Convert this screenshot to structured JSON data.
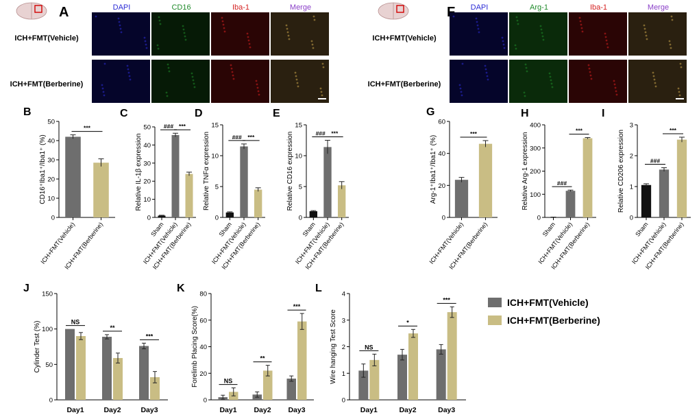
{
  "colors": {
    "vehicle": "#6e6e6e",
    "berberine": "#c9bd84",
    "sham": "#111111",
    "dapi": "#2b2bd6",
    "cd16": "#1f8a2a",
    "iba": "#d41f1f",
    "merge": "#8a3fc8",
    "border": "#888888"
  },
  "micro": [
    {
      "letter": "A",
      "columns": [
        "DAPI",
        "CD16",
        "Iba-1",
        "Merge"
      ],
      "rows": [
        "ICH+FMT(Vehicle)",
        "ICH+FMT(Berberine)"
      ]
    },
    {
      "letter": "F",
      "columns": [
        "DAPI",
        "Arg-1",
        "Iba-1",
        "Merge"
      ],
      "rows": [
        "ICH+FMT(Vehicle)",
        "ICH+FMT(Berberine)"
      ]
    }
  ],
  "legend": [
    "ICH+FMT(Vehicle)",
    "ICH+FMT(Berberine)"
  ],
  "chart_data": [
    {
      "panel": "B",
      "type": "bar",
      "ylabel": "CD16⁺Iba1⁺/Iba1⁺ (%)",
      "ylim": [
        0,
        50
      ],
      "yticks": [
        0,
        10,
        20,
        30,
        40,
        50
      ],
      "categories": [
        "ICH+FMT(Vehicle)",
        "ICH+FMT(Berberine)"
      ],
      "values": [
        42,
        28.5
      ],
      "errors": [
        1,
        2
      ],
      "colors": [
        "vehicle",
        "berberine"
      ],
      "annotations": [
        {
          "text": "***",
          "from": 0,
          "to": 1
        }
      ]
    },
    {
      "panel": "C",
      "type": "bar",
      "ylabel": "Relative IL-1β expression",
      "ylim": [
        0,
        50
      ],
      "yticks": [
        0,
        10,
        20,
        30,
        40,
        50
      ],
      "categories": [
        "Sham",
        "ICH+FMT(Vehicle)",
        "ICH+FMT(Berberine)"
      ],
      "values": [
        1,
        45.5,
        24
      ],
      "errors": [
        0.2,
        1,
        1
      ],
      "colors": [
        "sham",
        "vehicle",
        "berberine"
      ],
      "annotations": [
        {
          "text": "###",
          "from": 0,
          "to": 1
        },
        {
          "text": "***",
          "from": 1,
          "to": 2
        }
      ]
    },
    {
      "panel": "D",
      "type": "bar",
      "ylabel": "Relative TNFα expression",
      "ylim": [
        0,
        15
      ],
      "yticks": [
        0,
        5,
        10,
        15
      ],
      "categories": [
        "Sham",
        "ICH+FMT(Vehicle)",
        "ICH+FMT(Berberine)"
      ],
      "values": [
        0.8,
        11.5,
        4.5
      ],
      "errors": [
        0.1,
        0.4,
        0.3
      ],
      "colors": [
        "sham",
        "vehicle",
        "berberine"
      ],
      "annotations": [
        {
          "text": "###",
          "from": 0,
          "to": 1
        },
        {
          "text": "***",
          "from": 1,
          "to": 2
        }
      ]
    },
    {
      "panel": "E",
      "type": "bar",
      "ylabel": "Relative CD16 expression",
      "ylim": [
        0,
        15
      ],
      "yticks": [
        0,
        5,
        10,
        15
      ],
      "categories": [
        "Sham",
        "ICH+FMT(Vehicle)",
        "ICH+FMT(Berberine)"
      ],
      "values": [
        1,
        11.4,
        5.2
      ],
      "errors": [
        0.1,
        1.1,
        0.6
      ],
      "colors": [
        "sham",
        "vehicle",
        "berberine"
      ],
      "annotations": [
        {
          "text": "###",
          "from": 0,
          "to": 1
        },
        {
          "text": "***",
          "from": 1,
          "to": 2
        }
      ]
    },
    {
      "panel": "G",
      "type": "bar",
      "ylabel": "Arg-1⁺Iba1⁺/Iba1⁺ (%)",
      "ylim": [
        0,
        60
      ],
      "yticks": [
        0,
        20,
        40,
        60
      ],
      "categories": [
        "ICH+FMT(Vehicle)",
        "ICH+FMT(Berberine)"
      ],
      "values": [
        23.5,
        46
      ],
      "errors": [
        1.5,
        2
      ],
      "colors": [
        "vehicle",
        "berberine"
      ],
      "annotations": [
        {
          "text": "***",
          "from": 0,
          "to": 1
        }
      ]
    },
    {
      "panel": "H",
      "type": "bar",
      "ylabel": "Relative Arg-1 expression",
      "ylim": [
        0,
        400
      ],
      "yticks": [
        0,
        100,
        200,
        300,
        400
      ],
      "categories": [
        "Sham",
        "ICH+FMT(Vehicle)",
        "ICH+FMT(Berberine)"
      ],
      "values": [
        1,
        115,
        342
      ],
      "errors": [
        0.5,
        3,
        3
      ],
      "colors": [
        "sham",
        "vehicle",
        "berberine"
      ],
      "annotations": [
        {
          "text": "###",
          "from": 0,
          "to": 1
        },
        {
          "text": "***",
          "from": 1,
          "to": 2
        }
      ]
    },
    {
      "panel": "I",
      "type": "bar",
      "ylabel": "Relative CD206 expression",
      "ylim": [
        0,
        3
      ],
      "yticks": [
        0,
        1,
        2,
        3
      ],
      "categories": [
        "Sham",
        "ICH+FMT(Vehicle)",
        "ICH+FMT(Berberine)"
      ],
      "values": [
        1.05,
        1.55,
        2.52
      ],
      "errors": [
        0.04,
        0.06,
        0.08
      ],
      "colors": [
        "sham",
        "vehicle",
        "berberine"
      ],
      "annotations": [
        {
          "text": "###",
          "from": 0,
          "to": 1
        },
        {
          "text": "***",
          "from": 1,
          "to": 2
        }
      ]
    },
    {
      "panel": "J",
      "type": "bar",
      "ylabel": "Cylinder Test (%)",
      "ylim": [
        0,
        150
      ],
      "yticks": [
        0,
        50,
        100,
        150
      ],
      "categories": [
        "Day1",
        "Day2",
        "Day3"
      ],
      "series": [
        {
          "name": "ICH+FMT(Vehicle)",
          "color": "vehicle",
          "values": [
            100,
            89,
            76
          ],
          "errors": [
            0,
            3,
            4
          ]
        },
        {
          "name": "ICH+FMT(Berberine)",
          "color": "berberine",
          "values": [
            90,
            59,
            32
          ],
          "errors": [
            5,
            7,
            8
          ]
        }
      ],
      "annotations": [
        "NS",
        "**",
        "***"
      ]
    },
    {
      "panel": "K",
      "type": "bar",
      "ylabel": "Forelimb Placing Score(%)",
      "ylim": [
        0,
        80
      ],
      "yticks": [
        0,
        20,
        40,
        60,
        80
      ],
      "yticklabels": [
        "0",
        "20",
        "40",
        "60",
        "80"
      ],
      "categories": [
        "Day1",
        "Day2",
        "Day3"
      ],
      "series": [
        {
          "name": "ICH+FMT(Vehicle)",
          "color": "vehicle",
          "values": [
            2,
            4,
            16
          ],
          "errors": [
            1.5,
            2,
            2
          ]
        },
        {
          "name": "ICH+FMT(Berberine)",
          "color": "berberine",
          "values": [
            6,
            22,
            59
          ],
          "errors": [
            3,
            4,
            6
          ]
        }
      ],
      "annotations": [
        "NS",
        "**",
        "***"
      ]
    },
    {
      "panel": "L",
      "type": "bar",
      "ylabel": "Wire hanging Test Score",
      "ylim": [
        0,
        4
      ],
      "yticks": [
        0,
        1,
        2,
        3,
        4
      ],
      "categories": [
        "Day1",
        "Day2",
        "Day3"
      ],
      "series": [
        {
          "name": "ICH+FMT(Vehicle)",
          "color": "vehicle",
          "values": [
            1.1,
            1.7,
            1.9
          ],
          "errors": [
            0.25,
            0.2,
            0.18
          ]
        },
        {
          "name": "ICH+FMT(Berberine)",
          "color": "berberine",
          "values": [
            1.5,
            2.5,
            3.3
          ],
          "errors": [
            0.22,
            0.15,
            0.2
          ]
        }
      ],
      "annotations": [
        "NS",
        "*",
        "***"
      ]
    }
  ]
}
